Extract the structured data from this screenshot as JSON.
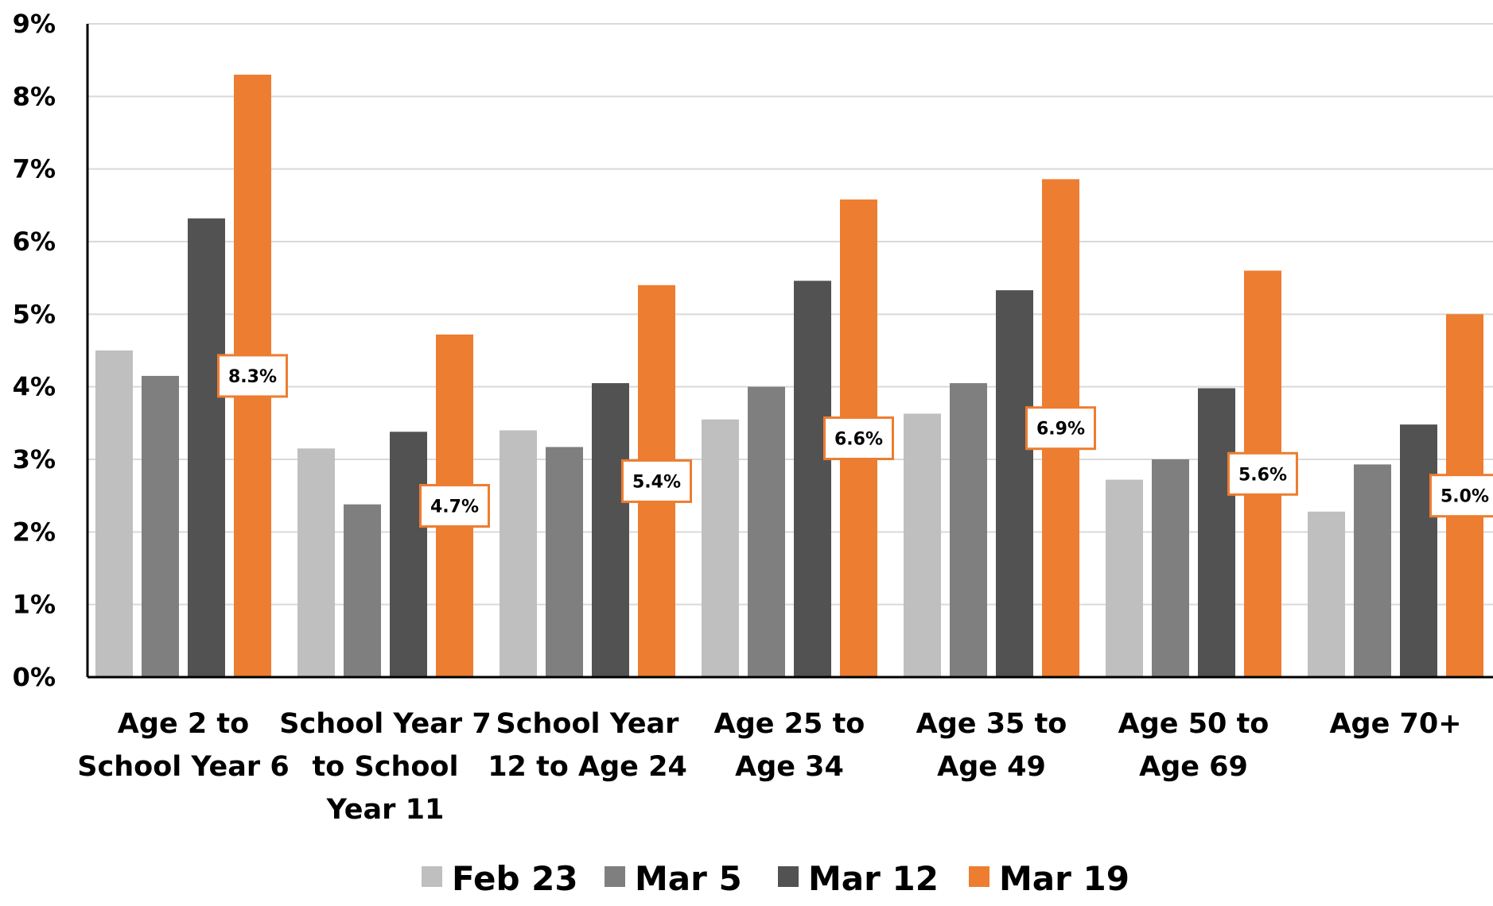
{
  "chart_data": {
    "type": "bar",
    "categories": [
      [
        "Age 2 to",
        "School Year 6"
      ],
      [
        "School Year 7",
        "to School",
        "Year 11"
      ],
      [
        "School Year",
        "12 to Age 24"
      ],
      [
        "Age 25 to",
        "Age 34"
      ],
      [
        "Age 35 to",
        "Age 49"
      ],
      [
        "Age 50 to",
        "Age 69"
      ],
      [
        "Age 70+"
      ]
    ],
    "series": [
      {
        "name": "Feb 23",
        "color": "#bfbfbf",
        "values": [
          4.5,
          3.15,
          3.4,
          3.55,
          3.63,
          2.72,
          2.28
        ]
      },
      {
        "name": "Mar 5",
        "color": "#7f7f7f",
        "values": [
          4.15,
          2.38,
          3.17,
          4.0,
          4.05,
          3.0,
          2.93
        ]
      },
      {
        "name": "Mar 12",
        "color": "#525252",
        "values": [
          6.32,
          3.38,
          4.05,
          5.46,
          5.33,
          3.98,
          3.48
        ]
      },
      {
        "name": "Mar 19",
        "color": "#ed7d31",
        "values": [
          8.3,
          4.72,
          5.4,
          6.58,
          6.86,
          5.6,
          5.0
        ]
      }
    ],
    "data_labels": [
      "8.3%",
      "4.7%",
      "5.4%",
      "6.6%",
      "6.9%",
      "5.6%",
      "5.0%"
    ],
    "y_ticks": [
      "0%",
      "1%",
      "2%",
      "3%",
      "4%",
      "5%",
      "6%",
      "7%",
      "8%",
      "9%"
    ],
    "ylim": [
      0,
      9
    ],
    "grid": true,
    "legend_position": "bottom",
    "title": "",
    "xlabel": "",
    "ylabel": ""
  }
}
